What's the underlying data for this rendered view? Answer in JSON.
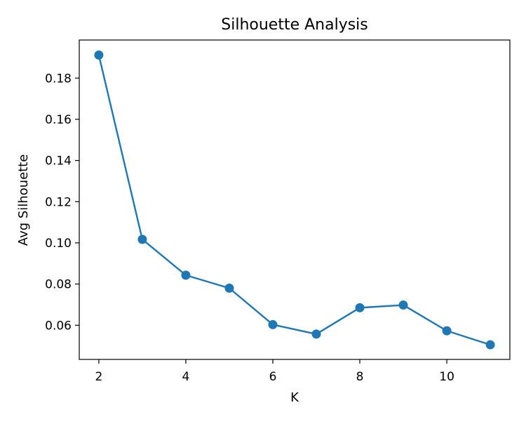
{
  "chart_data": {
    "type": "line",
    "title": "Silhouette Analysis",
    "xlabel": "K",
    "ylabel": "Avg Silhouette",
    "x": [
      2,
      3,
      4,
      5,
      6,
      7,
      8,
      9,
      10,
      11
    ],
    "series": [
      {
        "values": [
          0.1912,
          0.1017,
          0.0843,
          0.078,
          0.0603,
          0.0557,
          0.0685,
          0.0698,
          0.0573,
          0.0505
        ],
        "color": "#1f77b4",
        "marker": "circle"
      }
    ],
    "xlim": [
      1.55,
      11.45
    ],
    "ylim": [
      0.0434,
      0.1985
    ],
    "xticks": [
      2,
      4,
      6,
      8,
      10
    ],
    "xtick_labels": [
      "2",
      "4",
      "6",
      "8",
      "10"
    ],
    "yticks": [
      0.06,
      0.08,
      0.1,
      0.12,
      0.14,
      0.16,
      0.18
    ],
    "ytick_labels": [
      "0.06",
      "0.08",
      "0.10",
      "0.12",
      "0.14",
      "0.16",
      "0.18"
    ],
    "grid": false,
    "legend": "none"
  }
}
